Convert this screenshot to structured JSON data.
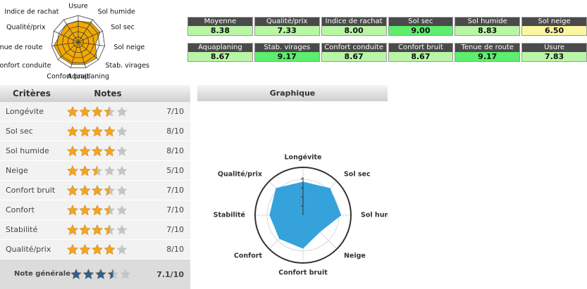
{
  "chart_data": [
    {
      "type": "radar",
      "categories": [
        "Usure",
        "Sol humide",
        "Sol sec",
        "Sol neige",
        "Stab. virages",
        "Aquaplaning",
        "Confort bruit",
        "Confort conduite",
        "Tenue de route",
        "Qualité/prix",
        "Indice de rachat"
      ],
      "values": [
        7.83,
        8.83,
        9.0,
        6.5,
        9.17,
        8.67,
        8.67,
        8.67,
        9.17,
        7.33,
        8.0
      ],
      "ylim": [
        0,
        10
      ],
      "yticks": [
        2,
        4,
        6,
        8,
        10
      ],
      "color": "#f2a900",
      "grid_shape": "polygon"
    },
    {
      "type": "radar",
      "title": "Graphique",
      "categories": [
        "Longévite",
        "Sol sec",
        "Sol humide",
        "Neige",
        "Confort bruit",
        "Confort",
        "Stabilité",
        "Qualité/prix"
      ],
      "values": [
        7,
        8,
        8,
        5,
        7,
        7,
        7,
        8
      ],
      "ylim": [
        0,
        10
      ],
      "yticks": [
        2.5,
        5,
        7.5
      ],
      "color": "#35a2dc",
      "grid_shape": "circle"
    }
  ],
  "scores": [
    {
      "label": "Moyenne",
      "value": "8.38",
      "color": "#b8f6a6"
    },
    {
      "label": "Qualité/prix",
      "value": "7.33",
      "color": "#b8f6a6"
    },
    {
      "label": "Indice de rachat",
      "value": "8.00",
      "color": "#b8f6a6"
    },
    {
      "label": "Sol sec",
      "value": "9.00",
      "color": "#5cee6c"
    },
    {
      "label": "Sol humide",
      "value": "8.83",
      "color": "#b8f6a6"
    },
    {
      "label": "Sol neige",
      "value": "6.50",
      "color": "#fbf6a2"
    },
    {
      "label": "Aquaplaning",
      "value": "8.67",
      "color": "#b8f6a6"
    },
    {
      "label": "Stab. virages",
      "value": "9.17",
      "color": "#5cee6c"
    },
    {
      "label": "Confort conduite",
      "value": "8.67",
      "color": "#b8f6a6"
    },
    {
      "label": "Confort bruit",
      "value": "8.67",
      "color": "#b8f6a6"
    },
    {
      "label": "Tenue de route",
      "value": "9.17",
      "color": "#5cee6c"
    },
    {
      "label": "Usure",
      "value": "7.83",
      "color": "#b8f6a6"
    }
  ],
  "table": {
    "headers": [
      "Critères",
      "Notes"
    ],
    "star_color": "#f5a41f",
    "overall_star_color": "#2b5e9e",
    "rows": [
      {
        "criterion": "Longévite",
        "stars": 3.5,
        "note": "7/10"
      },
      {
        "criterion": "Sol sec",
        "stars": 4,
        "note": "8/10"
      },
      {
        "criterion": "Sol humide",
        "stars": 4,
        "note": "8/10"
      },
      {
        "criterion": "Neige",
        "stars": 2.5,
        "note": "5/10"
      },
      {
        "criterion": "Confort bruit",
        "stars": 3.5,
        "note": "7/10"
      },
      {
        "criterion": "Confort",
        "stars": 3.5,
        "note": "7/10"
      },
      {
        "criterion": "Stabilité",
        "stars": 3.5,
        "note": "7/10"
      },
      {
        "criterion": "Qualité/prix",
        "stars": 4,
        "note": "8/10"
      }
    ],
    "overall": {
      "label": "Note générale",
      "stars": 3.5,
      "note": "7.1/10"
    }
  }
}
